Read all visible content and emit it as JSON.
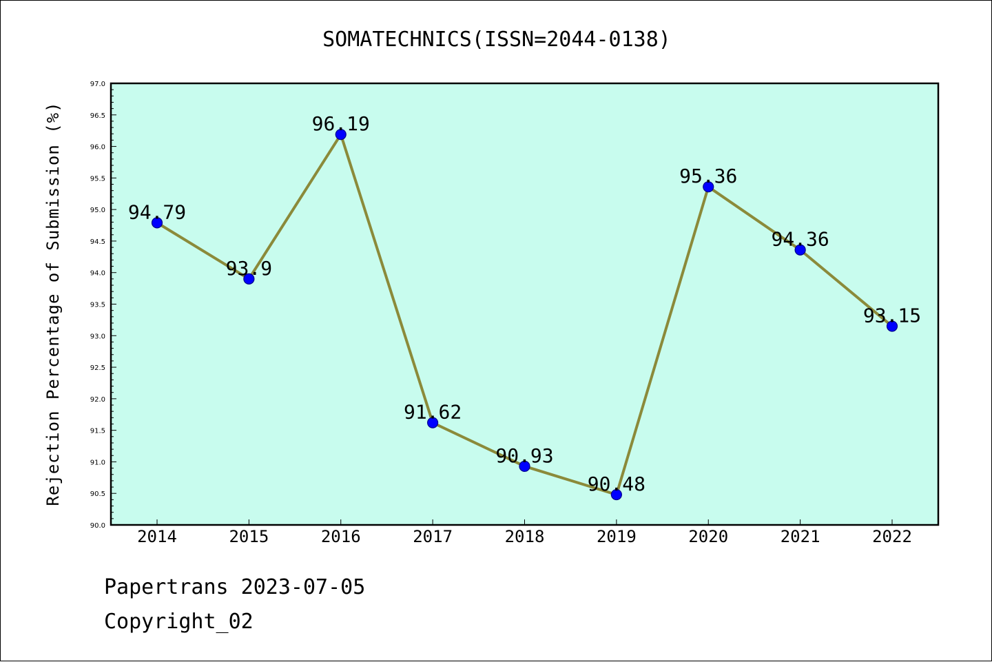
{
  "chart_data": {
    "type": "line",
    "title": "SOMATECHNICS(ISSN=2044-0138)",
    "ylabel": "Rejection Percentage of Submission (%)",
    "xlabel": "",
    "categories": [
      "2014",
      "2015",
      "2016",
      "2017",
      "2018",
      "2019",
      "2020",
      "2021",
      "2022"
    ],
    "series": [
      {
        "values": [
          94.79,
          93.9,
          96.19,
          91.62,
          90.93,
          90.48,
          95.36,
          94.36,
          93.15
        ],
        "data_labels": [
          "94.79",
          "93.9",
          "96.19",
          "91.62",
          "90.93",
          "90.48",
          "95.36",
          "94.36",
          "93.15"
        ]
      }
    ],
    "ylim": [
      90.0,
      97.0
    ],
    "yticks": [
      "90.0",
      "90.5",
      "91.0",
      "91.5",
      "92.0",
      "92.5",
      "93.0",
      "93.5",
      "94.0",
      "94.5",
      "95.0",
      "95.5",
      "96.0",
      "96.5",
      "97.0"
    ],
    "grid": false,
    "colors": {
      "plot_background": "#c8fcee",
      "line": "#8b8a3a",
      "marker": "#0000ff",
      "marker_edge": "#00008b"
    }
  },
  "footer": {
    "line1": "Papertrans 2023-07-05",
    "line2": "Copyright_02"
  }
}
